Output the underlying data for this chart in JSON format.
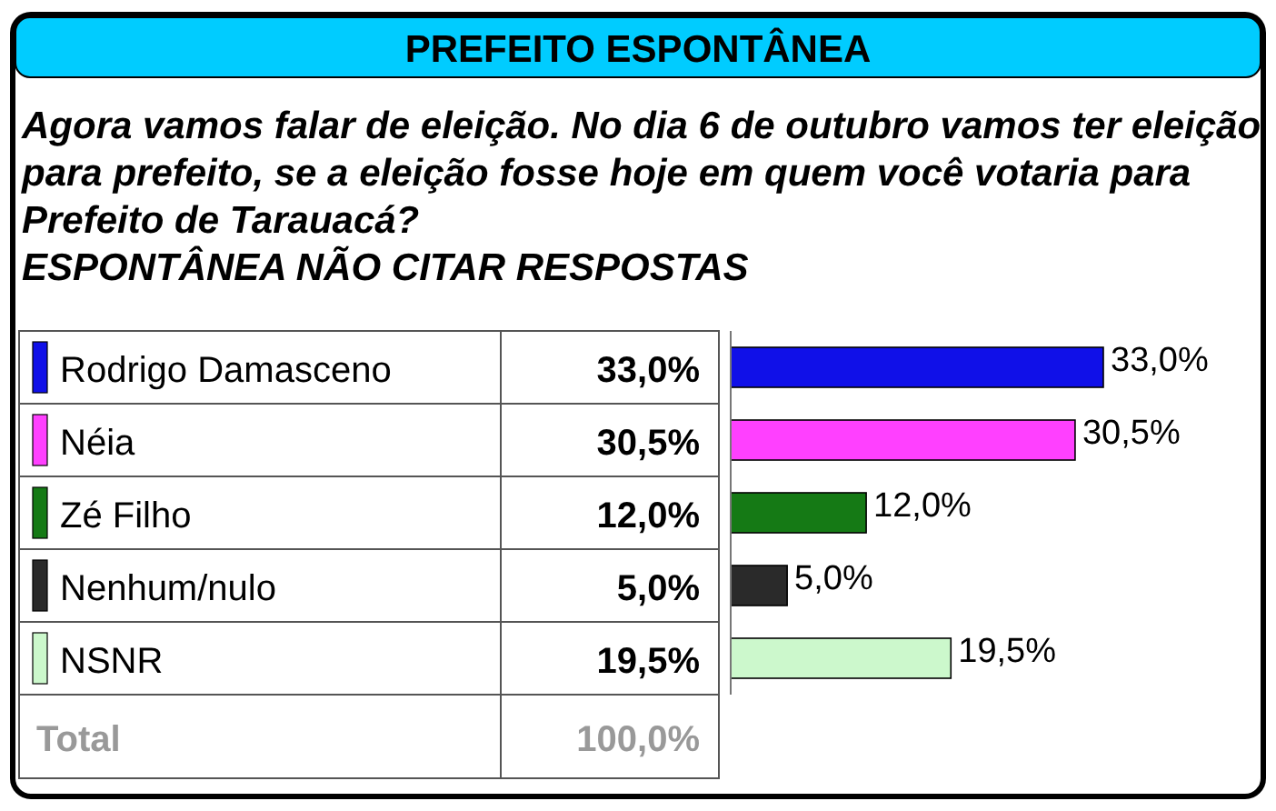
{
  "chart_data": {
    "type": "bar",
    "orientation": "horizontal",
    "title": "PREFEITO ESPONTÂNEA",
    "subtitle": "Agora vamos falar de eleição. No dia 6 de outubro vamos ter eleição para prefeito, se a eleição fosse hoje em quem você votaria para Prefeito de Tarauacá?\nESPONTÂNEA NÃO CITAR RESPOSTAS",
    "categories": [
      "Rodrigo Damasceno",
      "Néia",
      "Zé Filho",
      "Nenhum/nulo",
      "NSNR"
    ],
    "values": [
      33.0,
      30.5,
      12.0,
      5.0,
      19.5
    ],
    "colors": [
      "#1010e8",
      "#ff40ff",
      "#157a15",
      "#2a2a2a",
      "#ccf8cc"
    ],
    "value_labels": [
      "33,0%",
      "30,5%",
      "12,0%",
      "5,0%",
      "19,5%"
    ],
    "annotations": [
      "Total",
      "100,0%"
    ],
    "data_labels": false
  }
}
